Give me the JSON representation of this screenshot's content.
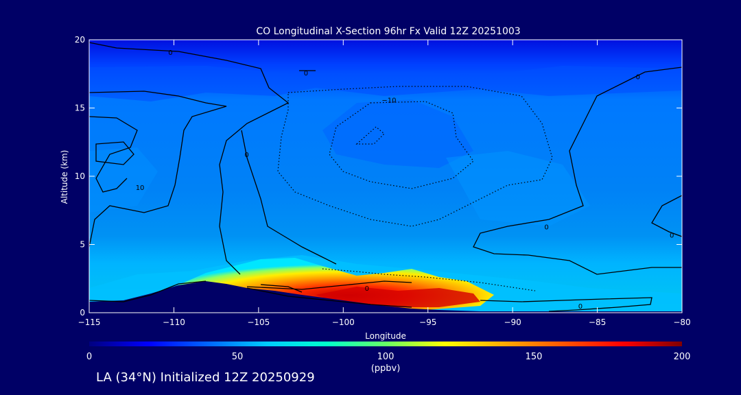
{
  "chart_data": {
    "type": "heatmap",
    "title": "CO Longitudinal X-Section 96hr  Fx Valid 12Z 20251003",
    "xlabel": "Longitude",
    "ylabel": "Altitude (km)",
    "xlim": [
      -115,
      -80
    ],
    "ylim": [
      0,
      20
    ],
    "x_ticks": [
      -115,
      -110,
      -105,
      -100,
      -95,
      -90,
      -85,
      -80
    ],
    "x_tick_labels": [
      "−115",
      "−110",
      "−105",
      "−100",
      "−95",
      "−90",
      "−85",
      "−80"
    ],
    "y_ticks": [
      0,
      5,
      10,
      15,
      20
    ],
    "y_tick_labels": [
      "0",
      "5",
      "10",
      "15",
      "20"
    ],
    "colorbar": {
      "range": [
        0,
        200
      ],
      "ticks": [
        0,
        50,
        100,
        150,
        200
      ],
      "tick_labels": [
        "0",
        "50",
        "100",
        "150",
        "200"
      ],
      "units": "(ppbv)",
      "colors": [
        "#000080",
        "#0000ff",
        "#0066ff",
        "#00ccff",
        "#00ffcc",
        "#66ff66",
        "#ffff00",
        "#ffaa00",
        "#ff5500",
        "#ff0000",
        "#800000"
      ]
    },
    "contour_labels": [
      {
        "text": "0",
        "lon": -110.2,
        "alt": 19.1
      },
      {
        "text": "0",
        "lon": -102.2,
        "alt": 17.6
      },
      {
        "text": "−10",
        "lon": -97.3,
        "alt": 15.6
      },
      {
        "text": "0",
        "lon": -82.6,
        "alt": 17.3
      },
      {
        "text": "0",
        "lon": -105.7,
        "alt": 11.6
      },
      {
        "text": "10",
        "lon": -112.0,
        "alt": 9.2
      },
      {
        "text": "0",
        "lon": -88.0,
        "alt": 6.3
      },
      {
        "text": "0",
        "lon": -80.6,
        "alt": 5.7
      },
      {
        "text": "0",
        "lon": -98.6,
        "alt": 1.8
      },
      {
        "text": "0",
        "lon": -86.0,
        "alt": 0.5
      }
    ],
    "footer": "LA (34°N) Initialized 12Z 20250929"
  }
}
